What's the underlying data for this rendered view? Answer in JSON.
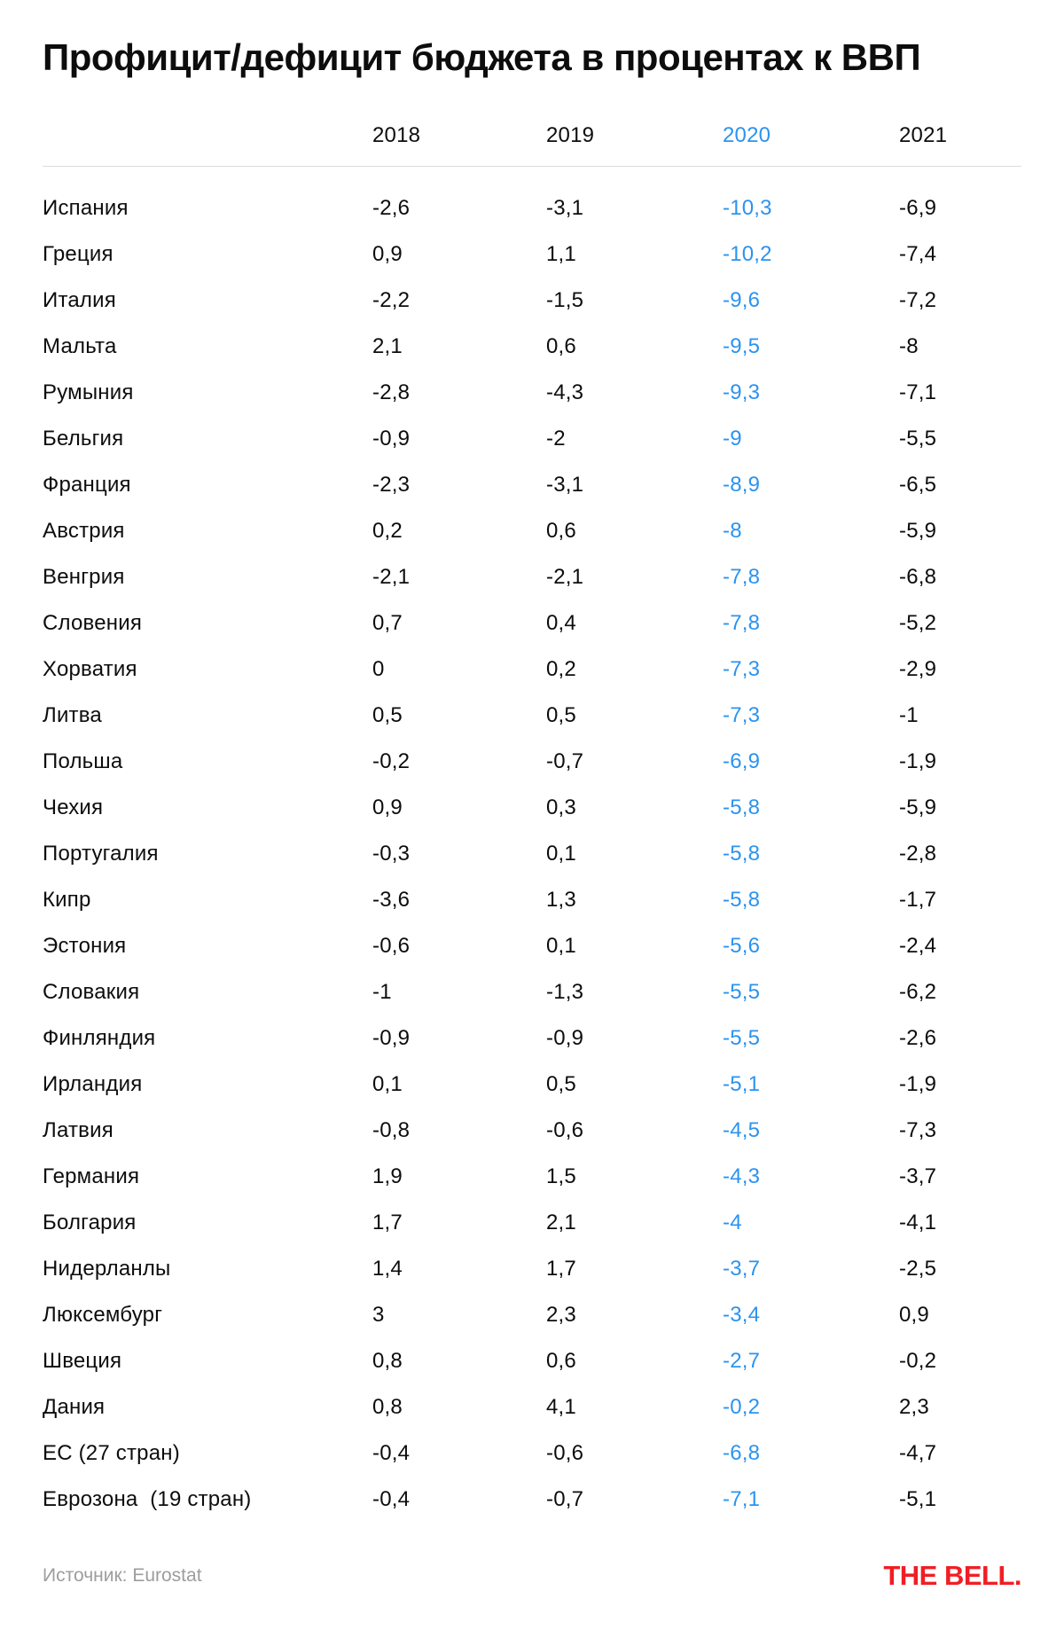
{
  "title": "Профицит/дефицит бюджета в процентах к ВВП",
  "footer": {
    "source": "Источник: Eurostat",
    "brand": "THE BELL."
  },
  "colors": {
    "accent_blue": "#2b93f0",
    "text_black": "#0d0d0d",
    "muted_gray": "#9d9d9d",
    "brand_red": "#f01e24",
    "divider_gray": "#dcdcdc",
    "background": "#ffffff"
  },
  "chart_data": {
    "type": "table",
    "title": "Профицит/дефицит бюджета в процентах к ВВП",
    "columns": [
      "2018",
      "2019",
      "2020",
      "2021"
    ],
    "highlighted_column": "2020",
    "rows": [
      {
        "country": "Испания",
        "values": [
          "-2,6",
          "-3,1",
          "-10,3",
          "-6,9"
        ]
      },
      {
        "country": "Греция",
        "values": [
          "0,9",
          "1,1",
          "-10,2",
          "-7,4"
        ]
      },
      {
        "country": "Италия",
        "values": [
          "-2,2",
          "-1,5",
          "-9,6",
          "-7,2"
        ]
      },
      {
        "country": "Мальта",
        "values": [
          "2,1",
          "0,6",
          "-9,5",
          "-8"
        ]
      },
      {
        "country": "Румыния",
        "values": [
          "-2,8",
          "-4,3",
          "-9,3",
          "-7,1"
        ]
      },
      {
        "country": "Бельгия",
        "values": [
          "-0,9",
          "-2",
          "-9",
          "-5,5"
        ]
      },
      {
        "country": "Франция",
        "values": [
          "-2,3",
          "-3,1",
          "-8,9",
          "-6,5"
        ]
      },
      {
        "country": "Австрия",
        "values": [
          "0,2",
          "0,6",
          "-8",
          "-5,9"
        ]
      },
      {
        "country": "Венгрия",
        "values": [
          "-2,1",
          "-2,1",
          "-7,8",
          "-6,8"
        ]
      },
      {
        "country": "Словения",
        "values": [
          "0,7",
          "0,4",
          "-7,8",
          "-5,2"
        ]
      },
      {
        "country": "Хорватия",
        "values": [
          "0",
          "0,2",
          "-7,3",
          "-2,9"
        ]
      },
      {
        "country": "Литва",
        "values": [
          "0,5",
          "0,5",
          "-7,3",
          "-1"
        ]
      },
      {
        "country": "Польша",
        "values": [
          "-0,2",
          "-0,7",
          "-6,9",
          "-1,9"
        ]
      },
      {
        "country": "Чехия",
        "values": [
          "0,9",
          "0,3",
          "-5,8",
          "-5,9"
        ]
      },
      {
        "country": "Португалия",
        "values": [
          "-0,3",
          "0,1",
          "-5,8",
          "-2,8"
        ]
      },
      {
        "country": "Кипр",
        "values": [
          "-3,6",
          "1,3",
          "-5,8",
          "-1,7"
        ]
      },
      {
        "country": "Эстония",
        "values": [
          "-0,6",
          "0,1",
          "-5,6",
          "-2,4"
        ]
      },
      {
        "country": "Словакия",
        "values": [
          "-1",
          "-1,3",
          "-5,5",
          "-6,2"
        ]
      },
      {
        "country": "Финляндия",
        "values": [
          "-0,9",
          "-0,9",
          "-5,5",
          "-2,6"
        ]
      },
      {
        "country": "Ирландия",
        "values": [
          "0,1",
          "0,5",
          "-5,1",
          "-1,9"
        ]
      },
      {
        "country": "Латвия",
        "values": [
          "-0,8",
          "-0,6",
          "-4,5",
          "-7,3"
        ]
      },
      {
        "country": "Германия",
        "values": [
          "1,9",
          "1,5",
          "-4,3",
          "-3,7"
        ]
      },
      {
        "country": "Болгария",
        "values": [
          "1,7",
          "2,1",
          "-4",
          "-4,1"
        ]
      },
      {
        "country": "Нидерланлы",
        "values": [
          "1,4",
          "1,7",
          "-3,7",
          "-2,5"
        ]
      },
      {
        "country": "Люксембург",
        "values": [
          "3",
          "2,3",
          "-3,4",
          "0,9"
        ]
      },
      {
        "country": "Швеция",
        "values": [
          "0,8",
          "0,6",
          "-2,7",
          "-0,2"
        ]
      },
      {
        "country": "Дания",
        "values": [
          "0,8",
          "4,1",
          "-0,2",
          "2,3"
        ]
      },
      {
        "country": "ЕС (27 стран)",
        "values": [
          "-0,4",
          "-0,6",
          "-6,8",
          "-4,7"
        ]
      },
      {
        "country": "Еврозона  (19 стран)",
        "values": [
          "-0,4",
          "-0,7",
          "-7,1",
          "-5,1"
        ]
      }
    ]
  }
}
